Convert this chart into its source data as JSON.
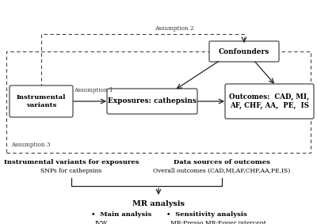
{
  "bg_color": "#ffffff",
  "iv_text": "Instrumental\nvariants",
  "exp_text": "Exposures: cathepsins",
  "out_text": "Outcomes:  CAD, MI,\nAF, CHF, AA,  PE,  IS",
  "conf_text": "Confounders",
  "assumption1": "Assumption 1",
  "assumption2": "Assumption 2",
  "assumption3": "Assumption 3",
  "iv_bold_label": "Instrumental variants for exposures",
  "iv_normal_label": "SNPs for cathepsins",
  "ds_bold_label": "Data sources of outcomes",
  "ds_normal_label": "Overall outcomes (CAD,MI,AF,CHF,AA,PE,IS)",
  "mr_label": "MR analysis",
  "main_bullet": "•  Main analysis",
  "main_items": "IVW\nWeighted median\nMR-Egger",
  "sens_bullet": "•  Sensitivity analysis",
  "sens_items": "MR-Presso MR-Egger intercept\nCochran’s Q test\nLeave-one-out"
}
